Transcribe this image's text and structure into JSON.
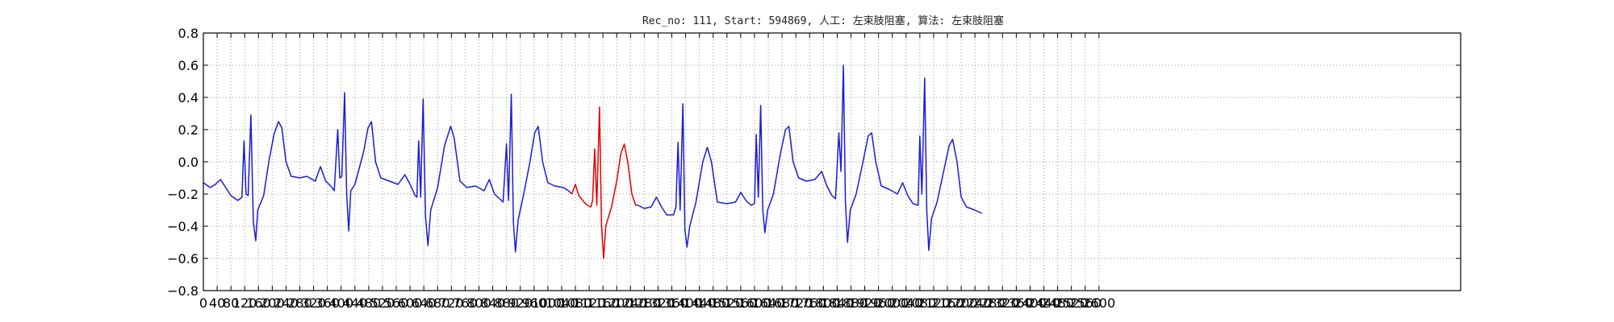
{
  "chart_data": {
    "type": "line",
    "title": "Rec_no: 111, Start: 594869, 人工: 左束肢阻塞, 算法: 左束肢阻塞",
    "xlabel": "",
    "ylabel": "",
    "xlim": [
      0,
      3650
    ],
    "ylim": [
      -0.8,
      0.8
    ],
    "grid": true,
    "x_ticks": [
      0,
      40,
      80,
      120,
      160,
      200,
      240,
      280,
      320,
      360,
      400,
      440,
      480,
      520,
      560,
      600,
      640,
      680,
      720,
      760,
      800,
      840,
      880,
      920,
      960,
      1000,
      1040,
      1080,
      1120,
      1160,
      1200,
      1240,
      1280,
      1320,
      1360,
      1400,
      1440,
      1480,
      1520,
      1560,
      1600,
      1640,
      1680,
      1720,
      1760,
      1800,
      1840,
      1880,
      1920,
      1960,
      2000,
      2040,
      2080,
      2120,
      2160,
      2200,
      2240,
      2280,
      2320,
      2360,
      2400,
      2440,
      2480,
      2520,
      2560,
      2600
    ],
    "y_ticks": [
      -0.8,
      -0.6,
      -0.4,
      -0.2,
      0.0,
      0.2,
      0.4,
      0.6,
      0.8
    ],
    "series": [
      {
        "color": "#1a1adb",
        "points": [
          [
            0,
            -0.13
          ],
          [
            20,
            -0.16
          ],
          [
            35,
            -0.14
          ],
          [
            50,
            -0.11
          ],
          [
            65,
            -0.16
          ],
          [
            80,
            -0.21
          ],
          [
            100,
            -0.24
          ],
          [
            112,
            -0.22
          ],
          [
            118,
            0.13
          ],
          [
            124,
            -0.2
          ],
          [
            130,
            -0.21
          ],
          [
            138,
            0.29
          ],
          [
            145,
            -0.37
          ],
          [
            152,
            -0.49
          ],
          [
            158,
            -0.3
          ],
          [
            175,
            -0.21
          ],
          [
            190,
            0.0
          ],
          [
            205,
            0.17
          ],
          [
            218,
            0.25
          ],
          [
            228,
            0.21
          ],
          [
            240,
            0.0
          ],
          [
            255,
            -0.09
          ],
          [
            280,
            -0.1
          ],
          [
            300,
            -0.09
          ],
          [
            325,
            -0.12
          ],
          [
            340,
            -0.03
          ],
          [
            355,
            -0.12
          ],
          [
            370,
            -0.15
          ],
          [
            380,
            -0.18
          ],
          [
            390,
            0.2
          ],
          [
            396,
            -0.1
          ],
          [
            402,
            -0.09
          ],
          [
            410,
            0.43
          ],
          [
            416,
            -0.2
          ],
          [
            422,
            -0.43
          ],
          [
            428,
            -0.18
          ],
          [
            440,
            -0.14
          ],
          [
            465,
            0.06
          ],
          [
            478,
            0.21
          ],
          [
            488,
            0.25
          ],
          [
            500,
            0.0
          ],
          [
            515,
            -0.1
          ],
          [
            540,
            -0.12
          ],
          [
            565,
            -0.14
          ],
          [
            585,
            -0.08
          ],
          [
            600,
            -0.14
          ],
          [
            615,
            -0.21
          ],
          [
            620,
            -0.22
          ],
          [
            625,
            0.13
          ],
          [
            631,
            -0.22
          ],
          [
            638,
            0.39
          ],
          [
            645,
            -0.34
          ],
          [
            652,
            -0.52
          ],
          [
            660,
            -0.3
          ],
          [
            680,
            -0.16
          ],
          [
            700,
            0.1
          ],
          [
            718,
            0.22
          ],
          [
            728,
            0.15
          ],
          [
            745,
            -0.12
          ],
          [
            765,
            -0.16
          ],
          [
            790,
            -0.15
          ],
          [
            815,
            -0.18
          ],
          [
            830,
            -0.11
          ],
          [
            845,
            -0.2
          ],
          [
            860,
            -0.23
          ],
          [
            870,
            -0.25
          ],
          [
            880,
            0.11
          ],
          [
            886,
            -0.24
          ],
          [
            894,
            0.42
          ],
          [
            900,
            -0.38
          ],
          [
            906,
            -0.56
          ],
          [
            914,
            -0.36
          ],
          [
            930,
            -0.2
          ],
          [
            948,
            0.0
          ],
          [
            962,
            0.18
          ],
          [
            972,
            0.22
          ],
          [
            985,
            0.0
          ],
          [
            1000,
            -0.13
          ],
          [
            1020,
            -0.15
          ],
          [
            1045,
            -0.16
          ],
          [
            1060,
            -0.18
          ],
          [
            1070,
            -0.2
          ]
        ]
      },
      {
        "color": "#e00000",
        "points": [
          [
            1070,
            -0.2
          ],
          [
            1080,
            -0.14
          ],
          [
            1090,
            -0.21
          ],
          [
            1105,
            -0.25
          ],
          [
            1115,
            -0.27
          ],
          [
            1125,
            -0.28
          ],
          [
            1130,
            -0.24
          ],
          [
            1136,
            0.08
          ],
          [
            1142,
            -0.27
          ],
          [
            1150,
            0.34
          ],
          [
            1156,
            -0.4
          ],
          [
            1162,
            -0.6
          ],
          [
            1168,
            -0.4
          ],
          [
            1185,
            -0.28
          ],
          [
            1200,
            -0.12
          ],
          [
            1212,
            0.05
          ],
          [
            1222,
            0.11
          ],
          [
            1232,
            0.0
          ],
          [
            1244,
            -0.2
          ],
          [
            1255,
            -0.27
          ],
          [
            1262,
            -0.27
          ]
        ]
      },
      {
        "color": "#1a1adb",
        "points": [
          [
            1262,
            -0.27
          ],
          [
            1280,
            -0.29
          ],
          [
            1300,
            -0.28
          ],
          [
            1315,
            -0.22
          ],
          [
            1330,
            -0.28
          ],
          [
            1345,
            -0.33
          ],
          [
            1365,
            -0.33
          ],
          [
            1372,
            -0.28
          ],
          [
            1378,
            0.12
          ],
          [
            1384,
            -0.3
          ],
          [
            1392,
            0.36
          ],
          [
            1398,
            -0.42
          ],
          [
            1404,
            -0.53
          ],
          [
            1412,
            -0.4
          ],
          [
            1430,
            -0.25
          ],
          [
            1450,
            0.0
          ],
          [
            1463,
            0.09
          ],
          [
            1475,
            0.0
          ],
          [
            1492,
            -0.25
          ],
          [
            1520,
            -0.26
          ],
          [
            1545,
            -0.25
          ],
          [
            1560,
            -0.19
          ],
          [
            1575,
            -0.24
          ],
          [
            1590,
            -0.27
          ],
          [
            1600,
            -0.26
          ],
          [
            1605,
            0.17
          ],
          [
            1611,
            -0.22
          ],
          [
            1618,
            0.35
          ],
          [
            1624,
            -0.3
          ],
          [
            1630,
            -0.44
          ],
          [
            1638,
            -0.3
          ],
          [
            1655,
            -0.2
          ],
          [
            1675,
            0.05
          ],
          [
            1690,
            0.2
          ],
          [
            1700,
            0.22
          ],
          [
            1712,
            0.0
          ],
          [
            1728,
            -0.1
          ],
          [
            1750,
            -0.12
          ],
          [
            1775,
            -0.11
          ],
          [
            1795,
            -0.06
          ],
          [
            1810,
            -0.15
          ],
          [
            1825,
            -0.21
          ],
          [
            1835,
            -0.23
          ],
          [
            1845,
            0.18
          ],
          [
            1851,
            -0.06
          ],
          [
            1858,
            0.6
          ],
          [
            1864,
            -0.25
          ],
          [
            1870,
            -0.5
          ],
          [
            1878,
            -0.3
          ],
          [
            1895,
            -0.2
          ],
          [
            1915,
            0.0
          ],
          [
            1930,
            0.16
          ],
          [
            1940,
            0.18
          ],
          [
            1952,
            0.0
          ],
          [
            1968,
            -0.15
          ],
          [
            1990,
            -0.17
          ],
          [
            2015,
            -0.2
          ],
          [
            2030,
            -0.13
          ],
          [
            2045,
            -0.21
          ],
          [
            2060,
            -0.26
          ],
          [
            2075,
            -0.27
          ],
          [
            2080,
            0.16
          ],
          [
            2086,
            -0.2
          ],
          [
            2094,
            0.52
          ],
          [
            2100,
            -0.3
          ],
          [
            2106,
            -0.55
          ],
          [
            2114,
            -0.35
          ],
          [
            2130,
            -0.25
          ],
          [
            2150,
            -0.05
          ],
          [
            2165,
            0.1
          ],
          [
            2175,
            0.14
          ],
          [
            2188,
            0.0
          ],
          [
            2200,
            -0.22
          ],
          [
            2215,
            -0.28
          ],
          [
            2240,
            -0.3
          ],
          [
            2260,
            -0.32
          ]
        ]
      }
    ]
  }
}
